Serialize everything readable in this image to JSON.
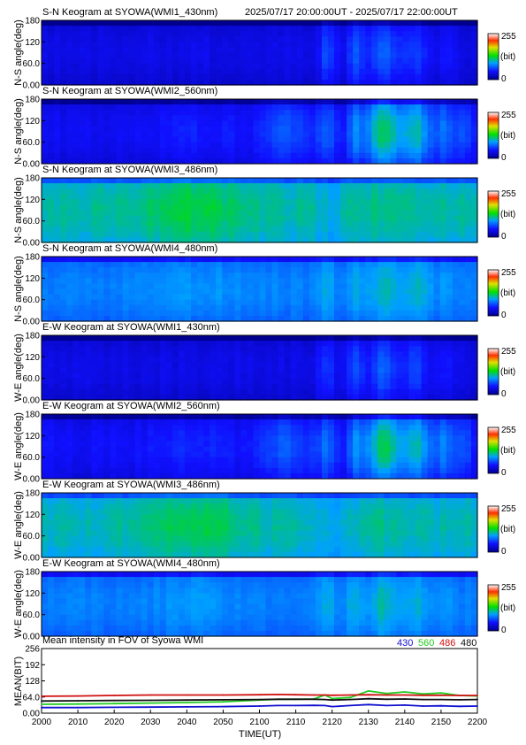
{
  "header": {
    "time_range": "2025/07/17 20:00:00UT - 2025/07/17 22:00:00UT"
  },
  "colorbar": {
    "max_label": "255",
    "unit_label": "(bit)",
    "min_label": "0"
  },
  "chart_data": [
    {
      "type": "heatmap",
      "title": "S-N Keogram at SYOWA(WMI1_430nm)",
      "ylabel": "N-S angle(deg)",
      "yticks": [
        "180",
        "120",
        "60.0",
        "0.00"
      ],
      "ylim": [
        0,
        180
      ],
      "zlim": [
        0,
        255
      ],
      "base_level": 0.1,
      "brightness_profile": "faint"
    },
    {
      "type": "heatmap",
      "title": "S-N Keogram at SYOWA(WMI2_560nm)",
      "ylabel": "N-S angle(deg)",
      "yticks": [
        "180",
        "120",
        "60.0",
        "0.00"
      ],
      "ylim": [
        0,
        180
      ],
      "zlim": [
        0,
        255
      ],
      "base_level": 0.12,
      "brightness_profile": "bright"
    },
    {
      "type": "heatmap",
      "title": "S-N Keogram at SYOWA(WMI3_486nm)",
      "ylabel": "N-S angle(deg)",
      "yticks": [
        "180",
        "120",
        "60.0",
        "0.00"
      ],
      "ylim": [
        0,
        180
      ],
      "zlim": [
        0,
        255
      ],
      "base_level": 0.38,
      "brightness_profile": "flat"
    },
    {
      "type": "heatmap",
      "title": "S-N Keogram at SYOWA(WMI4_480nm)",
      "ylabel": "N-S angle(deg)",
      "yticks": [
        "180",
        "120",
        "60.0",
        "0.00"
      ],
      "ylim": [
        0,
        180
      ],
      "zlim": [
        0,
        255
      ],
      "base_level": 0.28,
      "brightness_profile": "mid"
    },
    {
      "type": "heatmap",
      "title": "E-W Keogram at SYOWA(WMI1_430nm)",
      "ylabel": "W-E angle(deg)",
      "yticks": [
        "180",
        "120",
        "60.0",
        "0.00"
      ],
      "ylim": [
        0,
        180
      ],
      "zlim": [
        0,
        255
      ],
      "base_level": 0.1,
      "brightness_profile": "faint"
    },
    {
      "type": "heatmap",
      "title": "E-W Keogram at SYOWA(WMI2_560nm)",
      "ylabel": "W-E angle(deg)",
      "yticks": [
        "180",
        "120",
        "60.0",
        "0.00"
      ],
      "ylim": [
        0,
        180
      ],
      "zlim": [
        0,
        255
      ],
      "base_level": 0.13,
      "brightness_profile": "bright"
    },
    {
      "type": "heatmap",
      "title": "E-W Keogram at SYOWA(WMI3_486nm)",
      "ylabel": "W-E angle(deg)",
      "yticks": [
        "180",
        "120",
        "60.0",
        "0.00"
      ],
      "ylim": [
        0,
        180
      ],
      "zlim": [
        0,
        255
      ],
      "base_level": 0.37,
      "brightness_profile": "flat"
    },
    {
      "type": "heatmap",
      "title": "E-W Keogram at SYOWA(WMI4_480nm)",
      "ylabel": "W-E angle(deg)",
      "yticks": [
        "180",
        "120",
        "60.0",
        "0.00"
      ],
      "ylim": [
        0,
        180
      ],
      "zlim": [
        0,
        255
      ],
      "base_level": 0.28,
      "brightness_profile": "mid"
    },
    {
      "type": "line",
      "title": "Mean intensity in FOV of Syowa WMI",
      "ylabel": "MEAN(BIT)",
      "xlabel": "TIME(UT)",
      "x": [
        2000,
        2010,
        2020,
        2030,
        2040,
        2050,
        2100,
        2105,
        2110,
        2115,
        2118,
        2120,
        2125,
        2130,
        2135,
        2140,
        2145,
        2150,
        2155,
        2200
      ],
      "xticks": [
        "2000",
        "2010",
        "2020",
        "2030",
        "2040",
        "2050",
        "2100",
        "2110",
        "2120",
        "2130",
        "2140",
        "2150",
        "2200"
      ],
      "yticks": [
        "256",
        "192",
        "128",
        "64.0",
        "0.00"
      ],
      "ylim": [
        0,
        256
      ],
      "series": [
        {
          "name": "430",
          "color": "#1010d0",
          "values": [
            22,
            22,
            23,
            24,
            25,
            26,
            28,
            30,
            30,
            31,
            30,
            26,
            30,
            34,
            30,
            32,
            28,
            29,
            27,
            28
          ]
        },
        {
          "name": "560",
          "color": "#22cc22",
          "values": [
            35,
            36,
            38,
            40,
            42,
            45,
            52,
            55,
            55,
            56,
            72,
            58,
            62,
            88,
            78,
            84,
            76,
            80,
            70,
            68
          ]
        },
        {
          "name": "486",
          "color": "#d01010",
          "values": [
            67,
            68,
            70,
            72,
            72,
            72,
            73,
            74,
            73,
            72,
            72,
            71,
            72,
            73,
            72,
            72,
            71,
            71,
            70,
            70
          ]
        },
        {
          "name": "480",
          "color": "#111111",
          "values": [
            48,
            49,
            50,
            51,
            52,
            53,
            54,
            55,
            55,
            55,
            54,
            52,
            54,
            57,
            55,
            56,
            54,
            54,
            53,
            54
          ]
        }
      ]
    }
  ]
}
